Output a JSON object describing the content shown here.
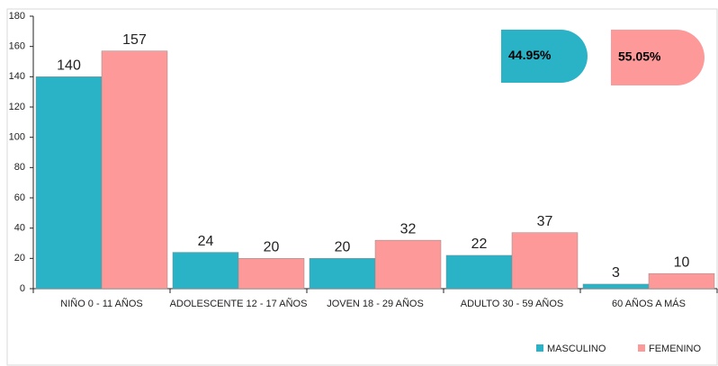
{
  "chart_data": {
    "type": "bar",
    "categories": [
      "NIÑO 0 - 11 AÑOS",
      "ADOLESCENTE 12 - 17 AÑOS",
      "JOVEN 18 - 29 AÑOS",
      "ADULTO 30 - 59 AÑOS",
      "60 AÑOS A MÁS"
    ],
    "series": [
      {
        "name": "MASCULINO",
        "color": "#2ab2c6",
        "values": [
          140,
          24,
          20,
          22,
          3
        ]
      },
      {
        "name": "FEMENINO",
        "color": "#fe9999",
        "values": [
          157,
          20,
          32,
          37,
          10
        ]
      }
    ],
    "ylim": [
      0,
      180
    ],
    "yticks": [
      0,
      20,
      40,
      60,
      80,
      100,
      120,
      140,
      160,
      180
    ],
    "legend": "bottom-right",
    "annotations": [
      {
        "text": "44.95%",
        "color": "#2ab2c6"
      },
      {
        "text": "55.05%",
        "color": "#fe9999"
      }
    ]
  }
}
